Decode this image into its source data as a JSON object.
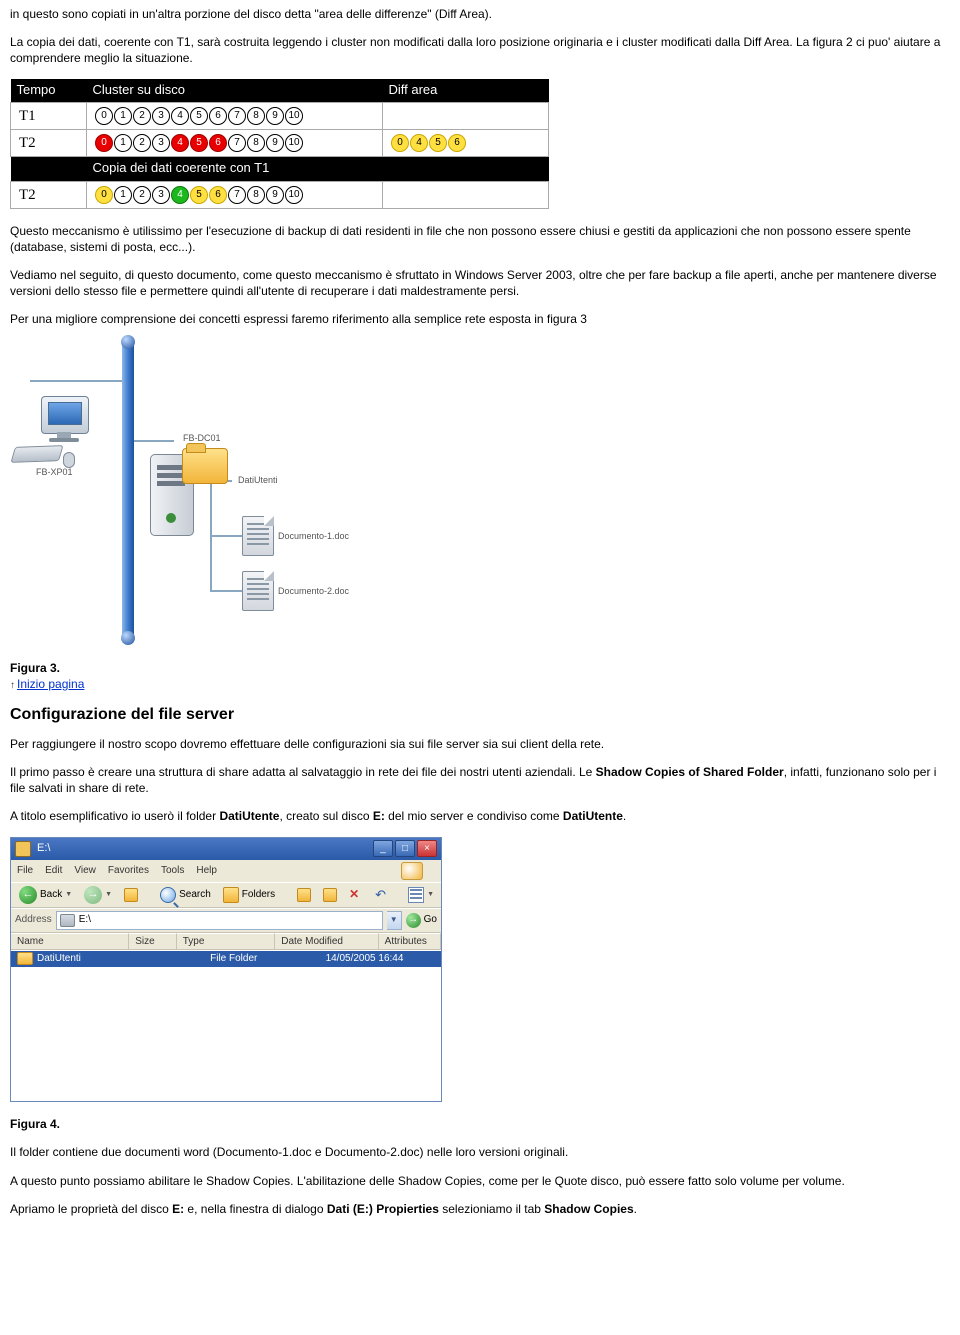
{
  "paragraphs": {
    "p1": "in questo sono copiati in un'altra porzione del disco detta \"area delle differenze\" (Diff Area).",
    "p2": "La copia dei dati, coerente con T1, sarà costruita leggendo i cluster non modificati dalla loro posizione originaria e i cluster modificati dalla Diff Area. La figura 2 ci puo' aiutare a comprendere meglio la situazione.",
    "p3": "Questo meccanismo è utilissimo per l'esecuzione di backup di dati residenti in file che non possono essere chiusi e gestiti da applicazioni che non possono essere spente (database, sistemi di posta, ecc...).",
    "p4": "Vediamo nel seguito, di questo documento, come questo meccanismo è sfruttato in Windows Server 2003, oltre che per fare backup a file aperti, anche per mantenere diverse versioni dello stesso file e permettere quindi all'utente di recuperare i dati maldestramente persi.",
    "p5": "Per una migliore comprensione dei concetti espressi faremo riferimento alla semplice rete esposta in figura 3",
    "p_conf": "Per raggiungere il nostro scopo dovremo effettuare delle configurazioni sia sui file server sia sui client della rete.",
    "p_share_a": "Il primo passo è creare una struttura di share adatta al salvataggio in rete dei file dei nostri utenti aziendali. Le ",
    "p_share_bold": "Shadow Copies of Shared Folder",
    "p_share_b": ", infatti, funzionano solo per i file salvati in share di rete.",
    "p_ex_a": "A titolo esemplificativo io userò il folder ",
    "p_ex_b1": "DatiUtente",
    "p_ex_c": ", creato sul disco ",
    "p_ex_b2": "E:",
    "p_ex_d": " del mio server e condiviso come ",
    "p_ex_b3": "DatiUtente",
    "p_ex_e": ".",
    "p_fold": "Il folder contiene due documenti word (Documento-1.doc e Documento-2.doc) nelle loro versioni originali.",
    "p_enable": "A questo punto possiamo abilitare le Shadow Copies. L'abilitazione delle Shadow Copies, come per le Quote disco, può essere fatto solo volume per volume.",
    "p_open_a": "Apriamo le proprietà del disco ",
    "p_open_b1": "E:",
    "p_open_b": " e, nella finestra di dialogo ",
    "p_open_b2": "Dati (E:) Propierties",
    "p_open_c": " selezioniamo il tab ",
    "p_open_b3": "Shadow Copies",
    "p_open_d": "."
  },
  "captions": {
    "fig3": "Figura 3.",
    "fig4": "Figura 4.",
    "top_link": "Inizio pagina"
  },
  "headings": {
    "config": "Configurazione del file server"
  },
  "cluster_table": {
    "headers": {
      "tempo": "Tempo",
      "disco": "Cluster su disco",
      "diff": "Diff area",
      "sub": "Copia dei dati coerente con T1"
    },
    "rows": {
      "t1": "T1",
      "t2a": "T2",
      "t2b": "T2"
    },
    "sequence": [
      "0",
      "1",
      "2",
      "3",
      "4",
      "5",
      "6",
      "7",
      "8",
      "9",
      "10"
    ],
    "diff_t2": [
      "0",
      "4",
      "5",
      "6"
    ],
    "t2_red": [
      "0",
      "4",
      "5",
      "6"
    ],
    "t2b_green": [
      "4"
    ],
    "t2b_yellow": [
      "0",
      "5",
      "6"
    ]
  },
  "network": {
    "pc_label": "FB-XP01",
    "server_label": "FB-DC01",
    "folder_label": "DatiUtenti",
    "doc1": "Documento-1.doc",
    "doc2": "Documento-2.doc"
  },
  "explorer": {
    "title": "E:\\",
    "menu": {
      "file": "File",
      "edit": "Edit",
      "view": "View",
      "fav": "Favorites",
      "tools": "Tools",
      "help": "Help"
    },
    "toolbar": {
      "back": "Back",
      "search": "Search",
      "folders": "Folders"
    },
    "address_label": "Address",
    "address_value": "E:\\",
    "go": "Go",
    "columns": {
      "name": "Name",
      "size": "Size",
      "type": "Type",
      "date": "Date Modified",
      "attr": "Attributes"
    },
    "col_widths": {
      "name": 128,
      "size": 42,
      "type": 104,
      "date": 110,
      "attr": 60
    },
    "row": {
      "name": "DatiUtenti",
      "type": "File Folder",
      "date": "14/05/2005 16:44"
    }
  }
}
